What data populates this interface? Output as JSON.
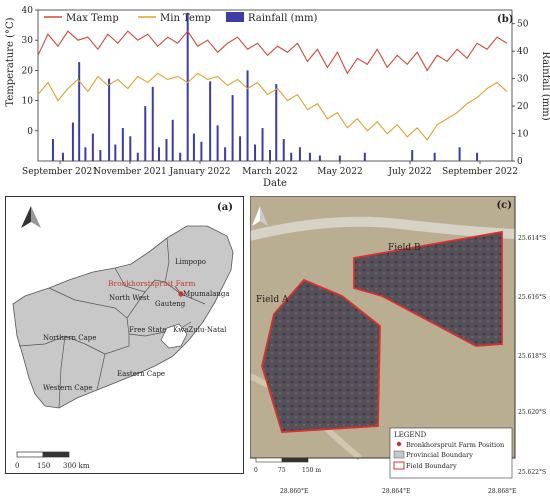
{
  "chart_data": {
    "type": "line",
    "panel_label": "(b)",
    "xlabel": "Date",
    "ylabel_left": "Temperature (°C)",
    "ylabel_right": "Rainfall (mm)",
    "ylim_left": [
      -10,
      40
    ],
    "ylim_right": [
      0,
      55
    ],
    "yticks_left": [
      0,
      10,
      20,
      30,
      40
    ],
    "yticks_right": [
      0,
      10,
      20,
      30,
      40,
      50
    ],
    "x_tick_labels": [
      "September 2021",
      "November 2021",
      "January 2022",
      "March 2022",
      "May 2022",
      "July 2022",
      "September 2022"
    ],
    "x_range_days": [
      0,
      380
    ],
    "legend": [
      "Max Temp",
      "Min Temp",
      "Rainfall (mm)"
    ],
    "legend_position": "top-left",
    "series": [
      {
        "name": "Max Temp",
        "color": "#cf4a3a",
        "values": [
          [
            0,
            25
          ],
          [
            8,
            32
          ],
          [
            16,
            28
          ],
          [
            24,
            33
          ],
          [
            32,
            30
          ],
          [
            40,
            31
          ],
          [
            48,
            27
          ],
          [
            56,
            32
          ],
          [
            64,
            29
          ],
          [
            72,
            33
          ],
          [
            80,
            30
          ],
          [
            88,
            32
          ],
          [
            96,
            28
          ],
          [
            104,
            31
          ],
          [
            112,
            29
          ],
          [
            120,
            33
          ],
          [
            128,
            28
          ],
          [
            136,
            30
          ],
          [
            144,
            26
          ],
          [
            152,
            29
          ],
          [
            160,
            31
          ],
          [
            168,
            27
          ],
          [
            176,
            29
          ],
          [
            184,
            25
          ],
          [
            192,
            28
          ],
          [
            200,
            26
          ],
          [
            208,
            29
          ],
          [
            216,
            23
          ],
          [
            224,
            27
          ],
          [
            232,
            21
          ],
          [
            240,
            26
          ],
          [
            248,
            19
          ],
          [
            256,
            24
          ],
          [
            264,
            22
          ],
          [
            272,
            27
          ],
          [
            280,
            21
          ],
          [
            288,
            25
          ],
          [
            296,
            22
          ],
          [
            304,
            26
          ],
          [
            312,
            20
          ],
          [
            320,
            25
          ],
          [
            328,
            23
          ],
          [
            336,
            27
          ],
          [
            344,
            24
          ],
          [
            352,
            29
          ],
          [
            360,
            27
          ],
          [
            368,
            31
          ],
          [
            376,
            29
          ]
        ]
      },
      {
        "name": "Min Temp",
        "color": "#e0a030",
        "values": [
          [
            0,
            12
          ],
          [
            8,
            16
          ],
          [
            16,
            10
          ],
          [
            24,
            14
          ],
          [
            32,
            17
          ],
          [
            40,
            13
          ],
          [
            48,
            18
          ],
          [
            56,
            15
          ],
          [
            64,
            17
          ],
          [
            72,
            14
          ],
          [
            80,
            18
          ],
          [
            88,
            16
          ],
          [
            96,
            19
          ],
          [
            104,
            17
          ],
          [
            112,
            18
          ],
          [
            120,
            16
          ],
          [
            128,
            19
          ],
          [
            136,
            17
          ],
          [
            144,
            18
          ],
          [
            152,
            15
          ],
          [
            160,
            17
          ],
          [
            168,
            14
          ],
          [
            176,
            16
          ],
          [
            184,
            12
          ],
          [
            192,
            14
          ],
          [
            200,
            10
          ],
          [
            208,
            12
          ],
          [
            216,
            7
          ],
          [
            224,
            9
          ],
          [
            232,
            4
          ],
          [
            240,
            6
          ],
          [
            248,
            1
          ],
          [
            256,
            4
          ],
          [
            264,
            0
          ],
          [
            272,
            3
          ],
          [
            280,
            -1
          ],
          [
            288,
            2
          ],
          [
            296,
            -2
          ],
          [
            304,
            1
          ],
          [
            312,
            -3
          ],
          [
            320,
            2
          ],
          [
            328,
            4
          ],
          [
            336,
            6
          ],
          [
            344,
            9
          ],
          [
            352,
            11
          ],
          [
            360,
            14
          ],
          [
            368,
            16
          ],
          [
            376,
            13
          ]
        ]
      },
      {
        "name": "Rainfall (mm)",
        "color": "#3c3ca8",
        "values": [
          [
            12,
            8
          ],
          [
            20,
            3
          ],
          [
            28,
            14
          ],
          [
            33,
            36
          ],
          [
            38,
            5
          ],
          [
            44,
            10
          ],
          [
            50,
            4
          ],
          [
            57,
            30
          ],
          [
            62,
            6
          ],
          [
            68,
            12
          ],
          [
            74,
            9
          ],
          [
            80,
            3
          ],
          [
            86,
            20
          ],
          [
            92,
            27
          ],
          [
            97,
            5
          ],
          [
            103,
            8
          ],
          [
            108,
            15
          ],
          [
            114,
            3
          ],
          [
            120,
            54
          ],
          [
            125,
            10
          ],
          [
            131,
            7
          ],
          [
            138,
            29
          ],
          [
            144,
            13
          ],
          [
            150,
            5
          ],
          [
            156,
            24
          ],
          [
            162,
            9
          ],
          [
            168,
            33
          ],
          [
            174,
            6
          ],
          [
            180,
            12
          ],
          [
            186,
            4
          ],
          [
            191,
            28
          ],
          [
            197,
            8
          ],
          [
            203,
            3
          ],
          [
            210,
            5
          ],
          [
            218,
            3
          ],
          [
            226,
            2
          ],
          [
            242,
            2
          ],
          [
            262,
            3
          ],
          [
            300,
            4
          ],
          [
            318,
            3
          ],
          [
            338,
            5
          ],
          [
            352,
            3
          ]
        ]
      }
    ]
  },
  "map_a": {
    "panel_label": "(a)",
    "farm_label": "Bronkhorstspruit Farm",
    "provinces": [
      "Limpopo",
      "Mpumalanga",
      "Gauteng",
      "North West",
      "Free State",
      "KwaZulu-Natal",
      "Northern Cape",
      "Eastern Cape",
      "Western Cape"
    ],
    "scale_ticks": [
      "0",
      "150",
      "300 km"
    ],
    "colors": {
      "land": "#c8c8c8",
      "boundary": "#555555",
      "farm": "#c0392b"
    }
  },
  "map_c": {
    "panel_label": "(c)",
    "field_a": "Field A",
    "field_b": "Field B",
    "lat_labels": [
      "25.614°S",
      "25.616°S",
      "25.618°S",
      "25.620°S",
      "25.622°S"
    ],
    "lon_labels": [
      "28.860°E",
      "28.864°E",
      "28.868°E"
    ],
    "scale_ticks": [
      "0",
      "75",
      "150 m"
    ],
    "legend_title": "LEGEND",
    "legend_items": [
      "Bronkhorspruit Farm Position",
      "Provincial Boundary",
      "Field Boundary"
    ],
    "colors": {
      "field_edge": "#d9302a",
      "background": "#b9ae92"
    }
  }
}
